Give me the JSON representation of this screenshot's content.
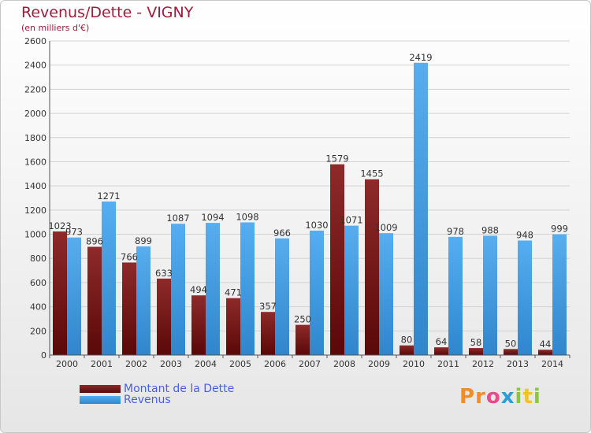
{
  "title": "Revenus/Dette - VIGNY",
  "subtitle": "(en milliers d'€)",
  "colors": {
    "dette": "#7a1a1a",
    "revenus": "#3c9ae0",
    "title": "#a01c3c",
    "legend_text": "#4a5ee6"
  },
  "legend": [
    {
      "label": "Montant de la Dette",
      "color": "#7a1a1a"
    },
    {
      "label": "Revenus",
      "color": "#3c9ae0"
    }
  ],
  "logo": {
    "letters": [
      "P",
      "r",
      "o",
      "x",
      "i",
      "t",
      "i"
    ],
    "colors": [
      "#f28c28",
      "#f28c28",
      "#e94b8a",
      "#2a9fd6",
      "#8cc63f",
      "#f2c12e",
      "#8cc63f"
    ]
  },
  "chart_data": {
    "type": "bar",
    "categories": [
      "2000",
      "2001",
      "2002",
      "2003",
      "2004",
      "2005",
      "2006",
      "2007",
      "2008",
      "2009",
      "2010",
      "2011",
      "2012",
      "2013",
      "2014"
    ],
    "series": [
      {
        "name": "Montant de la Dette",
        "values": [
          1023,
          896,
          766,
          633,
          494,
          471,
          357,
          250,
          1579,
          1455,
          80,
          64,
          58,
          50,
          44
        ]
      },
      {
        "name": "Revenus",
        "values": [
          973,
          1271,
          899,
          1087,
          1094,
          1098,
          966,
          1030,
          1071,
          1009,
          2419,
          978,
          988,
          948,
          999
        ]
      }
    ],
    "ylim": [
      0,
      2600
    ],
    "yticks": [
      0,
      200,
      400,
      600,
      800,
      1000,
      1200,
      1400,
      1600,
      1800,
      2000,
      2200,
      2400,
      2600
    ],
    "grid": true,
    "legend_position": "bottom-left"
  }
}
